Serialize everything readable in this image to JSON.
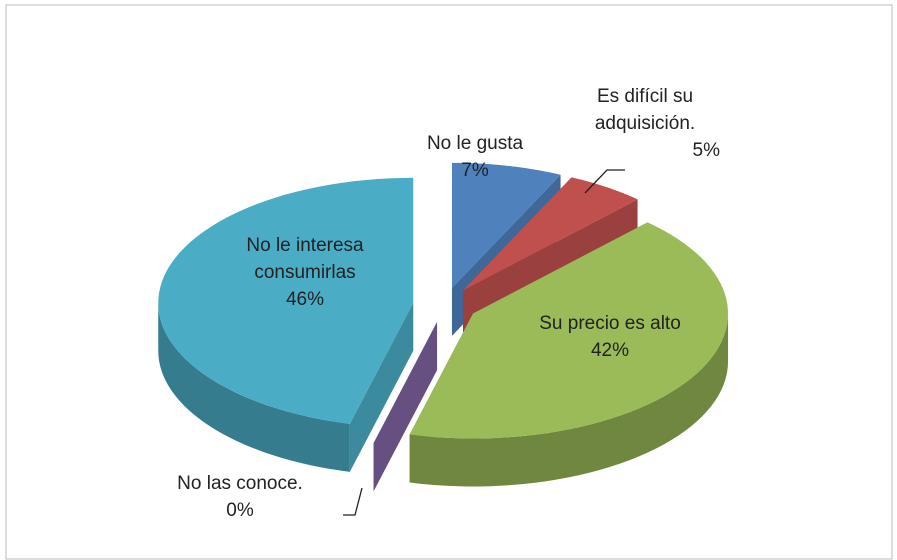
{
  "chart_data": {
    "type": "pie3d",
    "categories": [
      "No le gusta",
      "Es difícil su adquisición.",
      "Su precio es alto",
      "No las conoce.",
      "No le interesa consumirlas"
    ],
    "values": [
      7,
      5,
      42,
      0,
      46
    ],
    "value_labels": [
      "7%",
      "5%",
      "42%",
      "0%",
      "46%"
    ],
    "colors": [
      "#4f81bd",
      "#c0504d",
      "#9bbb59",
      "#8064a2",
      "#4bacc6"
    ]
  }
}
